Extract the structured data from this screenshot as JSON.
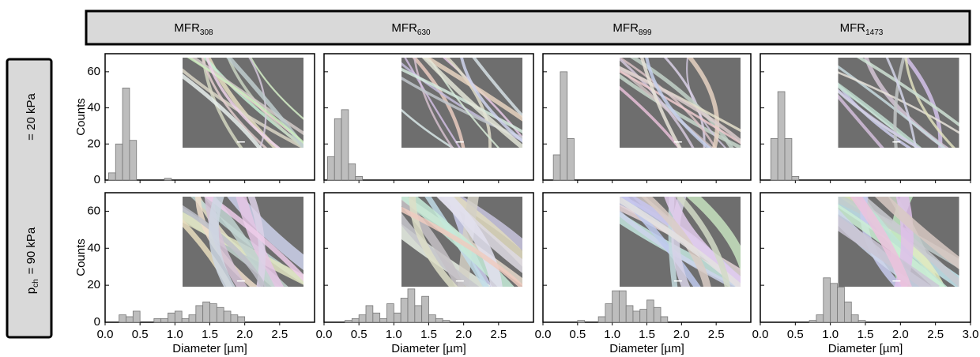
{
  "column_headers": [
    {
      "main": "MFR",
      "sub": "308"
    },
    {
      "main": "MFR",
      "sub": "630"
    },
    {
      "main": "MFR",
      "sub": "899"
    },
    {
      "main": "MFR",
      "sub": "1473"
    }
  ],
  "row_labels": [
    {
      "text": "= 20 kPa"
    },
    {
      "main": "p",
      "sub": "ch",
      "text": "= 90 kPa"
    }
  ],
  "chart_data": [
    {
      "type": "histogram",
      "ylabel": "Counts",
      "bins": [
        0.05,
        0.15,
        0.25,
        0.35,
        0.45,
        0.55,
        0.65,
        0.75,
        0.85,
        0.95
      ],
      "counts": [
        4,
        20,
        51,
        22,
        0,
        0,
        0,
        0,
        1
      ],
      "xlim": [
        0,
        3
      ],
      "ylim": [
        0,
        70
      ],
      "xticks": [
        0,
        0.5,
        1,
        1.5,
        2,
        2.5
      ],
      "yticks": [
        0,
        20,
        40,
        60
      ],
      "color": "#bdbdbd"
    },
    {
      "type": "histogram",
      "bins": [
        0.05,
        0.15,
        0.25,
        0.35,
        0.45,
        0.55
      ],
      "counts": [
        13,
        34,
        39,
        9,
        2
      ],
      "xlim": [
        0,
        3
      ],
      "ylim": [
        0,
        70
      ],
      "xticks": [
        0,
        0.5,
        1,
        1.5,
        2,
        2.5
      ],
      "yticks": [
        0,
        20,
        40,
        60
      ],
      "color": "#bdbdbd"
    },
    {
      "type": "histogram",
      "bins": [
        0.15,
        0.25,
        0.35,
        0.45
      ],
      "counts": [
        14,
        60,
        23
      ],
      "xlim": [
        0,
        3
      ],
      "ylim": [
        0,
        70
      ],
      "xticks": [
        0,
        0.5,
        1,
        1.5,
        2,
        2.5
      ],
      "yticks": [
        0,
        20,
        40,
        60
      ],
      "color": "#bdbdbd"
    },
    {
      "type": "histogram",
      "bins": [
        0.15,
        0.25,
        0.35,
        0.45,
        0.55
      ],
      "counts": [
        23,
        49,
        23,
        2
      ],
      "xlim": [
        0,
        3
      ],
      "ylim": [
        0,
        70
      ],
      "xticks": [
        0,
        0.5,
        1,
        1.5,
        2,
        2.5,
        3
      ],
      "yticks": [
        0,
        20,
        40,
        60
      ],
      "color": "#bdbdbd"
    },
    {
      "type": "histogram",
      "ylabel": "Counts",
      "xlabel": "Diameter [µm]",
      "bins": [
        0.2,
        0.3,
        0.4,
        0.5,
        0.6,
        0.7,
        0.8,
        0.9,
        1.0,
        1.1,
        1.2,
        1.3,
        1.4,
        1.5,
        1.6,
        1.7,
        1.8,
        1.9,
        2.0
      ],
      "counts": [
        4,
        3,
        6,
        0,
        0,
        2,
        2,
        5,
        6,
        2,
        4,
        9,
        11,
        10,
        8,
        6,
        4,
        3
      ],
      "xlim": [
        0,
        3
      ],
      "ylim": [
        0,
        70
      ],
      "xticks": [
        {
          "value": 0,
          "label": "0.0"
        },
        {
          "value": 0.5,
          "label": "0.5"
        },
        {
          "value": 1,
          "label": "1.0"
        },
        {
          "value": 1.5,
          "label": "1.5"
        },
        {
          "value": 2,
          "label": "2.0"
        },
        {
          "value": 2.5,
          "label": "2.5"
        }
      ],
      "yticks": [
        0,
        20,
        40,
        60
      ],
      "color": "#bdbdbd"
    },
    {
      "type": "histogram",
      "xlabel": "Diameter [µm]",
      "bins": [
        0.3,
        0.4,
        0.5,
        0.6,
        0.7,
        0.8,
        0.9,
        1.0,
        1.1,
        1.2,
        1.3,
        1.4,
        1.5,
        1.6,
        1.7,
        1.8
      ],
      "counts": [
        1,
        2,
        4,
        9,
        5,
        2,
        10,
        5,
        13,
        18,
        9,
        14,
        4,
        2,
        1
      ],
      "xlim": [
        0,
        3
      ],
      "ylim": [
        0,
        70
      ],
      "xticks": [
        {
          "value": 0,
          "label": "0.0"
        },
        {
          "value": 0.5,
          "label": "0.5"
        },
        {
          "value": 1,
          "label": "1.0"
        },
        {
          "value": 1.5,
          "label": "1.5"
        },
        {
          "value": 2,
          "label": "2.0"
        },
        {
          "value": 2.5,
          "label": "2.5"
        }
      ],
      "yticks": [
        0,
        20,
        40,
        60
      ],
      "color": "#bdbdbd"
    },
    {
      "type": "histogram",
      "xlabel": "Diameter [µm]",
      "bins": [
        0.5,
        0.6,
        0.7,
        0.8,
        0.9,
        1.0,
        1.1,
        1.2,
        1.3,
        1.4,
        1.5,
        1.6,
        1.7,
        1.8
      ],
      "counts": [
        1,
        0,
        0,
        3,
        10,
        17,
        17,
        9,
        6,
        7,
        12,
        8,
        3
      ],
      "xlim": [
        0,
        3
      ],
      "ylim": [
        0,
        70
      ],
      "xticks": [
        {
          "value": 0,
          "label": "0.0"
        },
        {
          "value": 0.5,
          "label": "0.5"
        },
        {
          "value": 1,
          "label": "1.0"
        },
        {
          "value": 1.5,
          "label": "1.5"
        },
        {
          "value": 2,
          "label": "2.0"
        },
        {
          "value": 2.5,
          "label": "2.5"
        }
      ],
      "yticks": [
        0,
        20,
        40,
        60
      ],
      "color": "#bdbdbd"
    },
    {
      "type": "histogram",
      "xlabel": "Diameter [µm]",
      "bins": [
        0.7,
        0.8,
        0.9,
        1.0,
        1.1,
        1.2,
        1.3,
        1.4,
        1.5
      ],
      "counts": [
        1,
        4,
        24,
        21,
        19,
        11,
        4,
        1
      ],
      "xlim": [
        0,
        3
      ],
      "ylim": [
        0,
        70
      ],
      "xticks": [
        {
          "value": 0,
          "label": "0.0"
        },
        {
          "value": 0.5,
          "label": "0.5"
        },
        {
          "value": 1,
          "label": "1.0"
        },
        {
          "value": 1.5,
          "label": "1.5"
        },
        {
          "value": 2,
          "label": "2.0"
        },
        {
          "value": 2.5,
          "label": "2.5"
        },
        {
          "value": 3,
          "label": "3.0"
        }
      ],
      "yticks": [
        0,
        20,
        40,
        60
      ],
      "color": "#bdbdbd"
    }
  ]
}
